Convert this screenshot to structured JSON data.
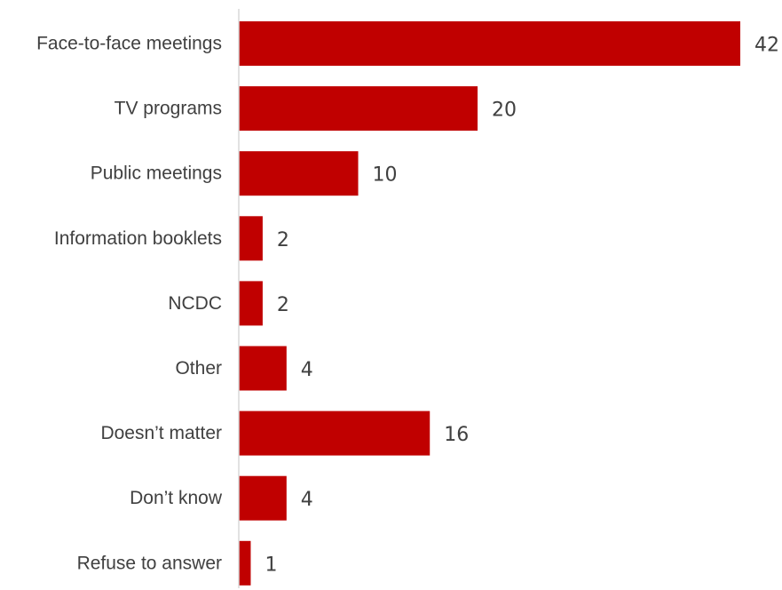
{
  "chart_data": {
    "type": "bar",
    "orientation": "horizontal",
    "categories": [
      "Face-to-face meetings",
      "TV programs",
      "Public meetings",
      "Information booklets",
      "NCDC",
      "Other",
      "Doesn’t matter",
      "Don’t know",
      "Refuse to answer"
    ],
    "values": [
      42,
      20,
      10,
      2,
      2,
      4,
      16,
      4,
      1
    ],
    "value_labels": [
      "42",
      "20",
      "10",
      "2",
      "2",
      "4",
      "16",
      "4",
      "1"
    ],
    "title": "",
    "xlabel": "",
    "ylabel": "",
    "xlim": [
      0,
      42
    ],
    "grid": false,
    "legend": "none",
    "bar_color": "#C00000",
    "axis_color": "#D9D9D9",
    "text_color": "#404040"
  }
}
